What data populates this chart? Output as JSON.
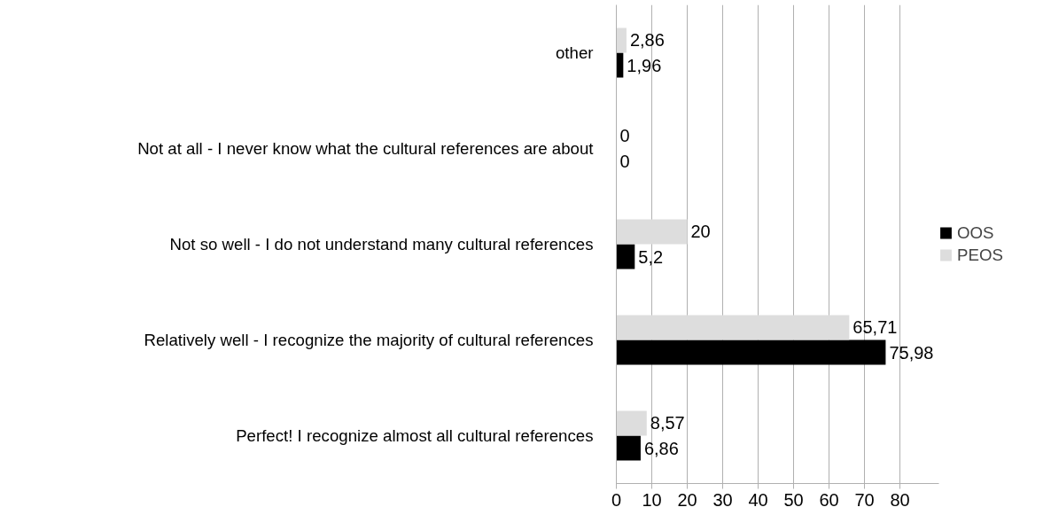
{
  "chart_data": {
    "type": "bar",
    "orientation": "horizontal",
    "categories": [
      "other",
      "Not at all - I never know what the cultural references are about",
      "Not so well - I do not understand many cultural references",
      "Relatively well - I recognize the majority of cultural references",
      "Perfect! I recognize almost all cultural references"
    ],
    "series": [
      {
        "name": "OOS",
        "color": "#000000",
        "values": [
          1.96,
          0,
          5.2,
          75.98,
          6.86
        ],
        "value_labels": [
          "1,96",
          "0",
          "5,2",
          "75,98",
          "6,86"
        ]
      },
      {
        "name": "PEOS",
        "color": "#dddddd",
        "values": [
          2.86,
          0,
          20,
          65.71,
          8.57
        ],
        "value_labels": [
          "2,86",
          "0",
          "20",
          "65,71",
          "8,57"
        ]
      }
    ],
    "xlim": [
      0,
      91
    ],
    "xticks": [
      0,
      10,
      20,
      30,
      40,
      50,
      60,
      70,
      80
    ],
    "grid": "x",
    "legend": "right"
  }
}
